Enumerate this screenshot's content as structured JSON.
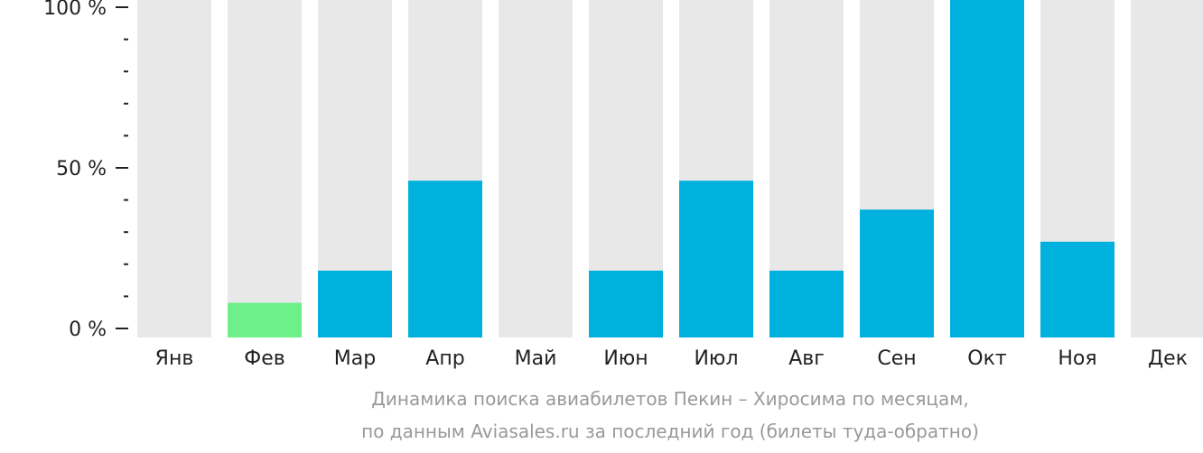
{
  "chart_data": {
    "type": "bar",
    "categories": [
      "Янв",
      "Фев",
      "Мар",
      "Апр",
      "Май",
      "Июн",
      "Июл",
      "Авг",
      "Сен",
      "Окт",
      "Ноя",
      "Дек"
    ],
    "values": [
      0,
      8,
      18,
      46,
      0,
      18,
      46,
      18,
      37,
      100,
      27,
      0
    ],
    "highlight_index": 1,
    "ylim": [
      0,
      100
    ],
    "y_tick_labels": [
      "100 %",
      "50 %",
      "0 %"
    ],
    "y_tick_values": [
      100,
      50,
      0
    ],
    "minor_tick_step": 10,
    "caption_lines": [
      "Динамика поиска авиабилетов Пекин – Хиросима по месяцам,",
      "по данным Aviasales.ru за последний год (билеты туда-обратно)"
    ],
    "colors": {
      "bar": "#00b0dd",
      "highlight": "#6df08a",
      "track": "#e8e8e8",
      "axis": "#222222",
      "text": "#222222",
      "caption": "#999999"
    },
    "grid": false,
    "legend": "none"
  }
}
